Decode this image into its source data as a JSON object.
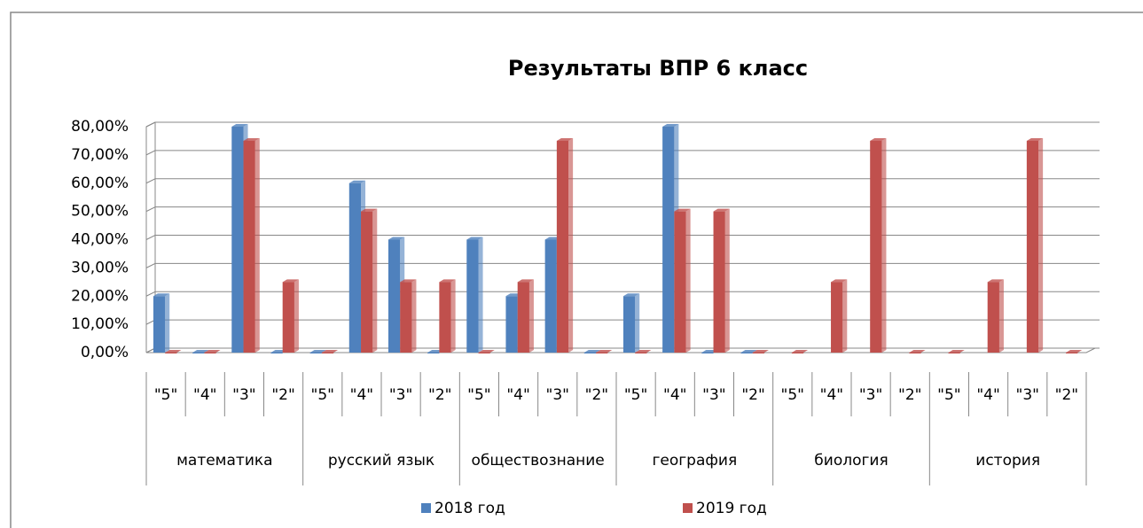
{
  "chart_data": {
    "type": "bar",
    "title": "Результаты ВПР 6 класс",
    "categories": [
      "\"5\"",
      "\"4\"",
      "\"3\"",
      "\"2\"",
      "\"5\"",
      "\"4\"",
      "\"3\"",
      "\"2\"",
      "\"5\"",
      "\"4\"",
      "\"3\"",
      "\"2\"",
      "\"5\"",
      "\"4\"",
      "\"3\"",
      "\"2\"",
      "\"5\"",
      "\"4\"",
      "\"3\"",
      "\"2\"",
      "\"5\"",
      "\"4\"",
      "\"3\"",
      "\"2\""
    ],
    "groups": [
      "математика",
      "русский язык",
      "обществознание",
      "география",
      "биология",
      "история"
    ],
    "series": [
      {
        "name": "2018 год",
        "color": "#4f81bd",
        "values": [
          20,
          0,
          80,
          0,
          0,
          60,
          40,
          0,
          40,
          20,
          40,
          0,
          20,
          80,
          0,
          0,
          null,
          null,
          null,
          null,
          null,
          null,
          null,
          null
        ]
      },
      {
        "name": "2019 год",
        "color": "#c0504d",
        "values": [
          0,
          0,
          75,
          25,
          0,
          50,
          25,
          25,
          0,
          25,
          75,
          0,
          0,
          50,
          50,
          0,
          0,
          25,
          75,
          0,
          0,
          25,
          75,
          0
        ]
      }
    ],
    "ylim": [
      0,
      80
    ],
    "yticks": [
      {
        "value": 0,
        "label": "0,00%"
      },
      {
        "value": 10,
        "label": "10,00%"
      },
      {
        "value": 20,
        "label": "20,00%"
      },
      {
        "value": 30,
        "label": "30,00%"
      },
      {
        "value": 40,
        "label": "40,00%"
      },
      {
        "value": 50,
        "label": "50,00%"
      },
      {
        "value": 60,
        "label": "60,00%"
      },
      {
        "value": 70,
        "label": "70,00%"
      },
      {
        "value": 80,
        "label": "80,00%"
      }
    ],
    "grid": true,
    "legend": "bottom"
  }
}
